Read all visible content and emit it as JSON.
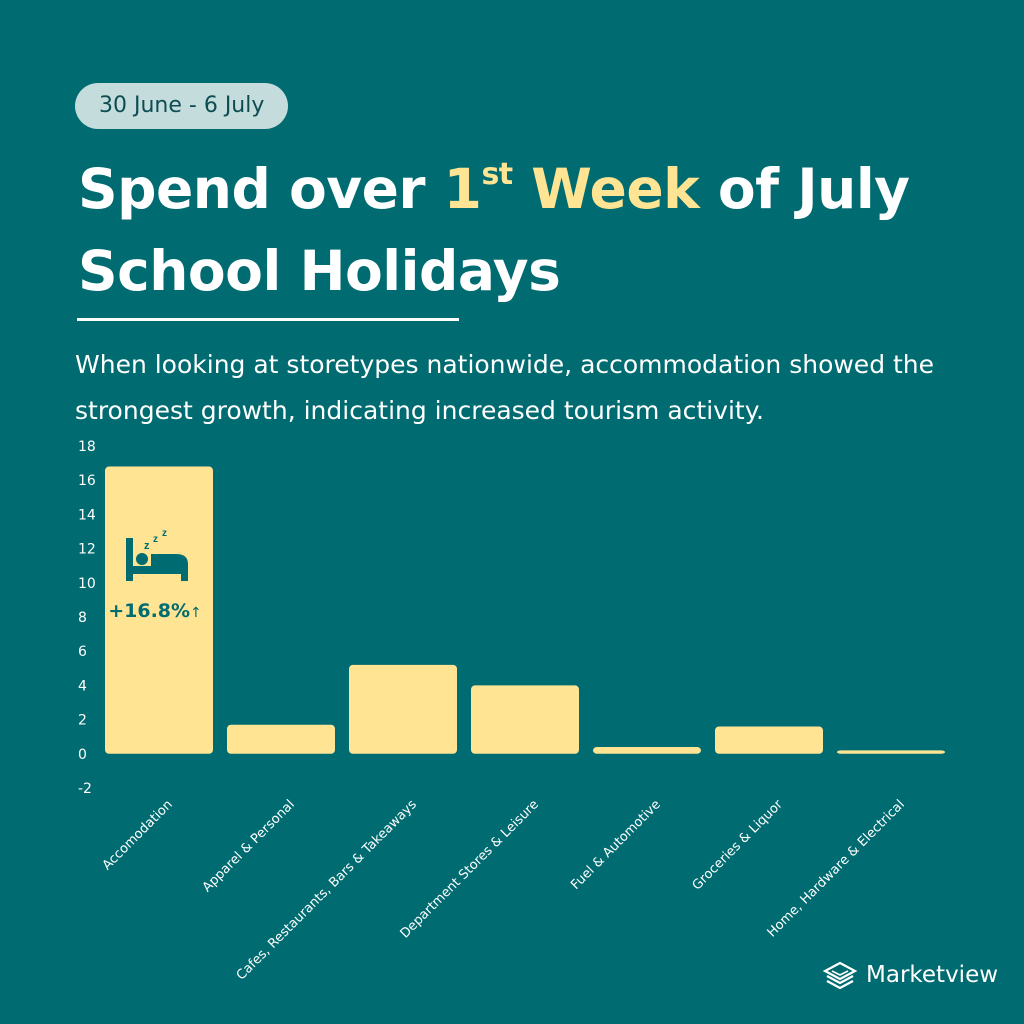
{
  "header": {
    "date_range": "30 June - 6 July",
    "title_part1": "Spend over ",
    "title_highlight_num": "1",
    "title_highlight_sup": "st",
    "title_highlight_word": " Week",
    "title_part2": " of July",
    "title_line2": "School Holidays",
    "description": "When looking at storetypes nationwide, accommodation showed the strongest growth, indicating increased tourism activity."
  },
  "chart_data": {
    "type": "bar",
    "categories": [
      "Accomodation",
      "Apparel & Personal",
      "Cafes, Restaurants, Bars & Takeaways",
      "Department Stores & Leisure",
      "Fuel & Automotive",
      "Groceries & Liquor",
      "Home, Hardware & Electrical"
    ],
    "values": [
      16.8,
      1.7,
      5.2,
      4.0,
      0.4,
      1.6,
      0.2
    ],
    "ylim": [
      -2,
      18
    ],
    "yticks": [
      18,
      16,
      14,
      12,
      10,
      8,
      6,
      4,
      2,
      0,
      -2
    ],
    "grid": false,
    "annotation": {
      "category": "Accomodation",
      "label": "+16.8%",
      "arrow": "↑",
      "icon": "sleeping-bed-icon"
    },
    "colors": {
      "bar": "#ffe593",
      "annotation_text": "#006b70"
    }
  },
  "brand": {
    "name": "Marketview",
    "icon": "stacked-layers-icon"
  }
}
